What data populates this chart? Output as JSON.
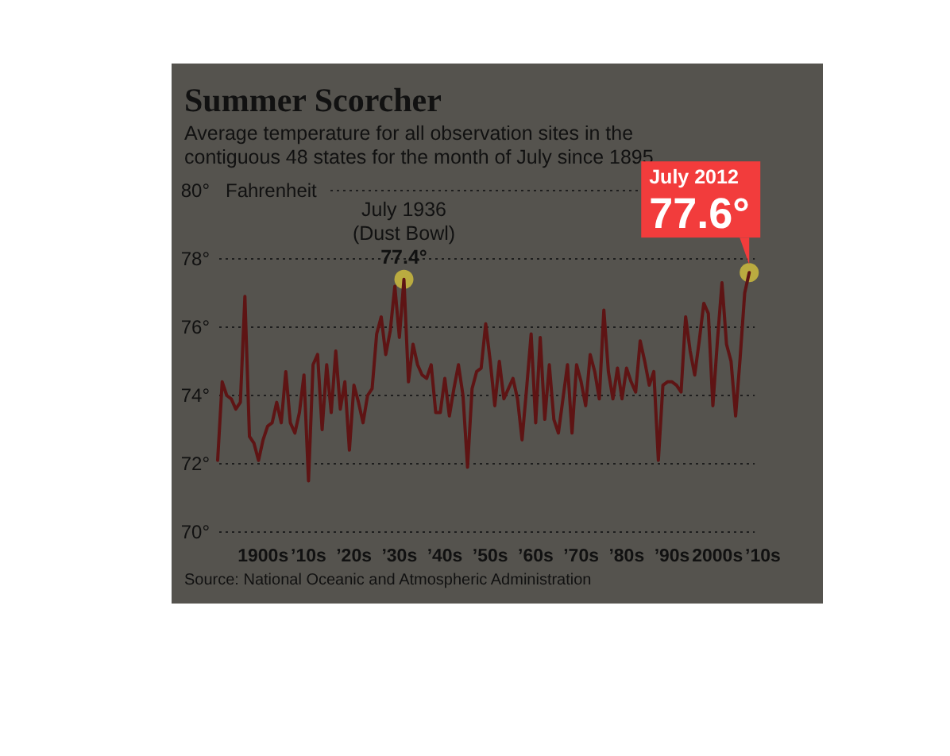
{
  "chart_data": {
    "type": "line",
    "title": "Summer Scorcher",
    "subtitle": "Average temperature for all observation sites in the contiguous 48 states for the month of July since 1895",
    "ylabel": "Fahrenheit",
    "categories": [
      null,
      null,
      null,
      null,
      null,
      null,
      null,
      null,
      null,
      null,
      "1900s",
      null,
      null,
      null,
      null,
      null,
      null,
      null,
      null,
      null,
      "’10s",
      null,
      null,
      null,
      null,
      null,
      null,
      null,
      null,
      null,
      "’20s",
      null,
      null,
      null,
      null,
      null,
      null,
      null,
      null,
      null,
      "’30s",
      null,
      null,
      null,
      null,
      null,
      null,
      null,
      null,
      null,
      "’40s",
      null,
      null,
      null,
      null,
      null,
      null,
      null,
      null,
      null,
      "’50s",
      null,
      null,
      null,
      null,
      null,
      null,
      null,
      null,
      null,
      "’60s",
      null,
      null,
      null,
      null,
      null,
      null,
      null,
      null,
      null,
      "’70s",
      null,
      null,
      null,
      null,
      null,
      null,
      null,
      null,
      null,
      "’80s",
      null,
      null,
      null,
      null,
      null,
      null,
      null,
      null,
      null,
      "’90s",
      null,
      null,
      null,
      null,
      null,
      null,
      null,
      null,
      null,
      "2000s",
      null,
      null,
      null,
      null,
      null,
      null,
      null,
      null,
      null,
      "’10s",
      null
    ],
    "series": [
      {
        "color": "#5e1414",
        "values": [
          72.1,
          74.4,
          74.0,
          73.9,
          73.6,
          73.8,
          76.9,
          72.8,
          72.6,
          72.1,
          72.7,
          73.1,
          73.2,
          73.8,
          73.2,
          74.7,
          73.2,
          72.9,
          73.5,
          74.6,
          71.5,
          74.9,
          75.2,
          73.0,
          74.9,
          73.5,
          75.3,
          73.6,
          74.4,
          72.4,
          74.3,
          73.8,
          73.2,
          74.0,
          74.2,
          75.8,
          76.3,
          75.2,
          75.9,
          77.2,
          75.7,
          77.4,
          74.4,
          75.5,
          74.9,
          74.6,
          74.5,
          74.9,
          73.5,
          73.5,
          74.5,
          73.4,
          74.2,
          74.9,
          74.0,
          71.9,
          74.2,
          74.7,
          74.8,
          76.1,
          75.0,
          73.7,
          75.0,
          73.9,
          74.2,
          74.5,
          73.9,
          72.7,
          74.2,
          75.8,
          73.2,
          75.7,
          73.3,
          74.9,
          73.3,
          72.9,
          73.9,
          74.9,
          72.9,
          74.9,
          74.4,
          73.7,
          75.2,
          74.7,
          73.9,
          76.5,
          74.7,
          73.9,
          74.8,
          73.9,
          74.8,
          74.4,
          74.1,
          75.6,
          75.0,
          74.3,
          74.7,
          72.1,
          74.3,
          74.4,
          74.4,
          74.3,
          74.1,
          76.3,
          75.3,
          74.6,
          75.6,
          76.7,
          76.4,
          73.7,
          75.6,
          77.3,
          75.5,
          75.0,
          73.4,
          75.1,
          77.0,
          77.6,
          null,
          null,
          null,
          null
        ]
      }
    ],
    "ylim": [
      70,
      80
    ],
    "yticks": [
      {
        "value": 70,
        "label": "70°"
      },
      {
        "value": 72,
        "label": "72°"
      },
      {
        "value": 74,
        "label": "74°"
      },
      {
        "value": 76,
        "label": "76°"
      },
      {
        "value": 78,
        "label": "78°"
      },
      {
        "value": 80,
        "label": "80°"
      }
    ],
    "grid": "y",
    "line_style": "solid",
    "marker": "none",
    "annotations": [
      {
        "text": "July 1936\n(Dust Bowl)\n77.4°",
        "y": 77.4
      },
      "July 2012\n77.6°",
      "Source: National Oceanic and Atmospheric Administration"
    ]
  }
}
